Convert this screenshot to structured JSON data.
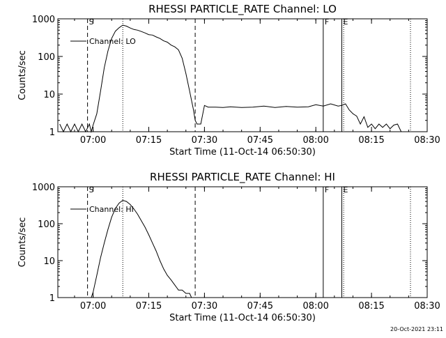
{
  "stamp": "20-Oct-2021 23:11",
  "chart_data": [
    {
      "type": "line",
      "title": "RHESSI PARTICLE_RATE Channel: LO",
      "xlabel": "Start Time (11-Oct-14 06:50:30)",
      "ylabel": "Counts/sec",
      "yscale": "log",
      "ylim": [
        1,
        1000
      ],
      "xlim": [
        "06:50:30",
        "08:30:00"
      ],
      "x_ticks": [
        "07:00",
        "07:15",
        "07:30",
        "07:45",
        "08:00",
        "08:15",
        "08:30"
      ],
      "y_ticks": [
        "1",
        "10",
        "100",
        "1000"
      ],
      "legend": "top-left",
      "series": [
        {
          "name": "Channel: LO",
          "x": [
            "06:51",
            "06:52",
            "06:53",
            "06:54",
            "06:55",
            "06:56",
            "06:57",
            "06:58",
            "06:59",
            "06:59:30",
            "07:00",
            "07:01",
            "07:02",
            "07:03",
            "07:04",
            "07:05",
            "07:06",
            "07:07",
            "07:08",
            "07:09",
            "07:10",
            "07:11",
            "07:12",
            "07:13",
            "07:14",
            "07:15",
            "07:16",
            "07:17",
            "07:18",
            "07:19",
            "07:20",
            "07:21",
            "07:22",
            "07:23",
            "07:24",
            "07:25",
            "07:26",
            "07:27",
            "07:27:30",
            "07:28",
            "07:29",
            "07:30",
            "07:31",
            "07:33",
            "07:35",
            "07:37",
            "07:40",
            "07:43",
            "07:46",
            "07:49",
            "07:52",
            "07:55",
            "07:58",
            "08:00",
            "08:02",
            "08:04",
            "08:06",
            "08:07",
            "08:08",
            "08:09",
            "08:10",
            "08:11",
            "08:12",
            "08:13",
            "08:14",
            "08:15",
            "08:16",
            "08:17",
            "08:18",
            "08:19",
            "08:20",
            "08:21",
            "08:22",
            "08:23"
          ],
          "y": [
            1.6,
            1,
            1.6,
            1,
            1.6,
            1,
            1.6,
            1,
            1.6,
            1,
            1.5,
            3,
            12,
            50,
            140,
            300,
            470,
            580,
            680,
            640,
            570,
            520,
            500,
            460,
            420,
            380,
            370,
            330,
            300,
            260,
            240,
            200,
            180,
            150,
            90,
            35,
            12,
            4,
            2,
            1.6,
            1.6,
            5,
            4.5,
            4.5,
            4.4,
            4.6,
            4.4,
            4.5,
            4.8,
            4.4,
            4.7,
            4.5,
            4.6,
            5.2,
            4.8,
            5.5,
            4.8,
            5,
            5.5,
            3.8,
            3,
            2.6,
            1.6,
            2.5,
            1.3,
            1.6,
            1.2,
            1.6,
            1.3,
            1.6,
            1.2,
            1.5,
            1.6,
            1
          ]
        }
      ],
      "annotations": [
        {
          "label": "S",
          "x": "06:58:30",
          "style": "dashed"
        },
        {
          "label": "",
          "x": "07:08:00",
          "style": "dotted"
        },
        {
          "label": "",
          "x": "07:27:30",
          "style": "dashed"
        },
        {
          "label": "F",
          "x": "08:02:00",
          "style": "solid"
        },
        {
          "label": "E",
          "x": "08:07:00",
          "style": "solid"
        },
        {
          "label": "",
          "x": "08:07:30",
          "style": "dotted"
        },
        {
          "label": "",
          "x": "08:25:30",
          "style": "dotted"
        }
      ]
    },
    {
      "type": "line",
      "title": "RHESSI PARTICLE_RATE Channel: HI",
      "xlabel": "Start Time (11-Oct-14 06:50:30)",
      "ylabel": "Counts/sec",
      "yscale": "log",
      "ylim": [
        1,
        1000
      ],
      "xlim": [
        "06:50:30",
        "08:30:00"
      ],
      "x_ticks": [
        "07:00",
        "07:15",
        "07:30",
        "07:45",
        "08:00",
        "08:15",
        "08:30"
      ],
      "y_ticks": [
        "1",
        "10",
        "100",
        "1000"
      ],
      "legend": "top-left",
      "series": [
        {
          "name": "Channel: HI",
          "x": [
            "06:59:30",
            "07:00",
            "07:01",
            "07:02",
            "07:03",
            "07:04",
            "07:05",
            "07:06",
            "07:07",
            "07:08",
            "07:09",
            "07:10",
            "07:11",
            "07:12",
            "07:13",
            "07:14",
            "07:15",
            "07:16",
            "07:17",
            "07:18",
            "07:19",
            "07:20",
            "07:21",
            "07:22",
            "07:23",
            "07:24",
            "07:25",
            "07:26",
            "07:26:30"
          ],
          "y": [
            1,
            1.4,
            4,
            12,
            30,
            70,
            150,
            260,
            360,
            430,
            400,
            330,
            250,
            180,
            120,
            80,
            50,
            30,
            18,
            10,
            6,
            4,
            3,
            2.2,
            1.6,
            1.6,
            1.3,
            1.3,
            1
          ]
        }
      ],
      "annotations": [
        {
          "label": "S",
          "x": "06:58:30",
          "style": "dashed"
        },
        {
          "label": "",
          "x": "07:08:00",
          "style": "dotted"
        },
        {
          "label": "",
          "x": "07:27:30",
          "style": "dashed"
        },
        {
          "label": "F",
          "x": "08:02:00",
          "style": "solid"
        },
        {
          "label": "E",
          "x": "08:07:00",
          "style": "solid"
        },
        {
          "label": "",
          "x": "08:07:30",
          "style": "dotted"
        },
        {
          "label": "",
          "x": "08:25:30",
          "style": "dotted"
        }
      ]
    }
  ]
}
